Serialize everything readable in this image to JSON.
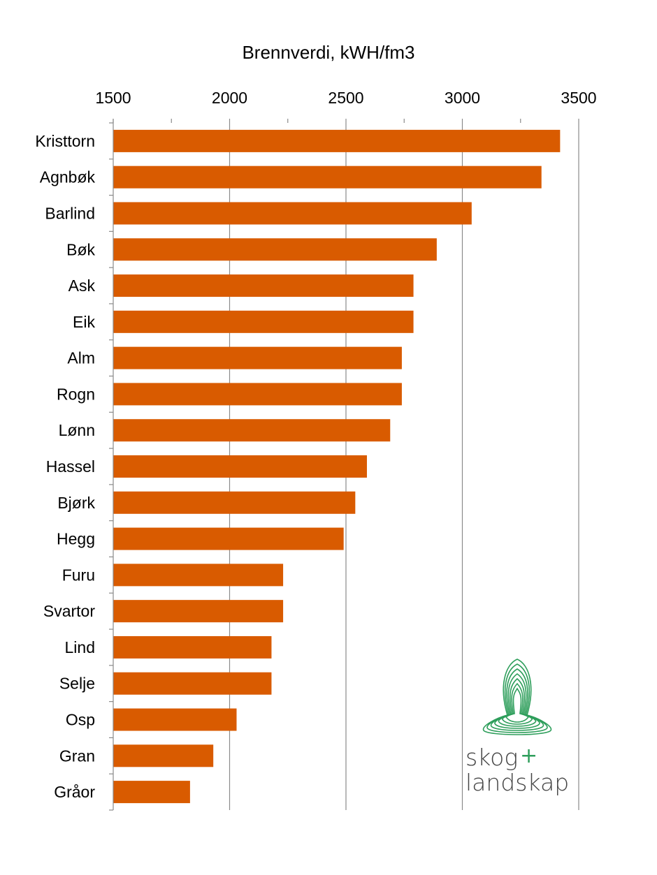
{
  "chart_data": {
    "type": "bar",
    "orientation": "horizontal",
    "title": "Brennverdi, kWH/fm3",
    "xlim": [
      1500,
      3500
    ],
    "x_ticks": [
      "1500",
      "2000",
      "2500",
      "3000",
      "3500"
    ],
    "axis_position": "top",
    "grid": true,
    "bar_color": "#d95b00",
    "categories": [
      "Kristtorn",
      "Agnbøk",
      "Barlind",
      "Bøk",
      "Ask",
      "Eik",
      "Alm",
      "Rogn",
      "Lønn",
      "Hassel",
      "Bjørk",
      "Hegg",
      "Furu",
      "Svartor",
      "Lind",
      "Selje",
      "Osp",
      "Gran",
      "Gråor"
    ],
    "values": [
      3420,
      3340,
      3040,
      2890,
      2790,
      2790,
      2740,
      2740,
      2690,
      2590,
      2540,
      2490,
      2230,
      2230,
      2180,
      2180,
      2030,
      1930,
      1830
    ]
  },
  "logo": {
    "line1": "skog",
    "plus": "+",
    "line2": "landskap",
    "color": "#2e9e5b"
  }
}
